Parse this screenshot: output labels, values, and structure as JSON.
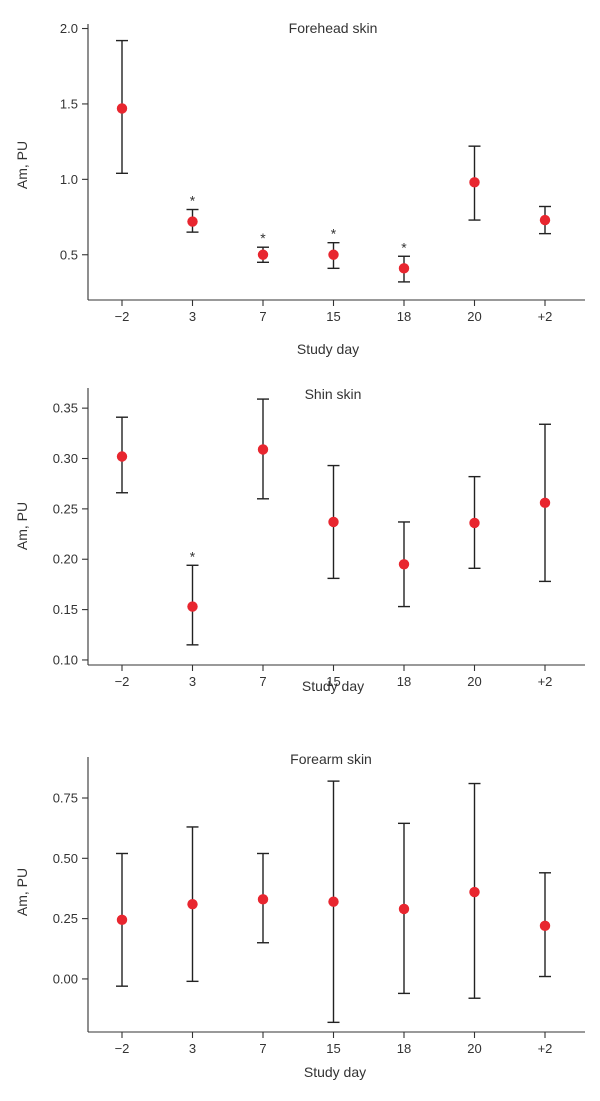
{
  "chart_data": [
    {
      "type": "scatter",
      "title": "Forehead skin",
      "xlabel": "Study day",
      "ylabel": "Am, PU",
      "categories": [
        "−2",
        "3",
        "7",
        "15",
        "18",
        "20",
        "+2"
      ],
      "ylim": [
        0.2,
        2.03
      ],
      "yticks": [
        0.5,
        1.0,
        1.5,
        2.0
      ],
      "ytick_labels": [
        "0.5",
        "1.0",
        "1.5",
        "2.0"
      ],
      "series": [
        {
          "values": [
            1.47,
            0.72,
            0.5,
            0.5,
            0.41,
            0.98,
            0.73
          ],
          "error_low": [
            1.04,
            0.65,
            0.45,
            0.41,
            0.32,
            0.73,
            0.64
          ],
          "error_high": [
            1.92,
            0.8,
            0.55,
            0.58,
            0.49,
            1.22,
            0.82
          ],
          "significant": [
            false,
            true,
            true,
            true,
            true,
            false,
            false
          ]
        }
      ],
      "significance_marker": "*",
      "marker_color": "#e8262f",
      "grid": false
    },
    {
      "type": "scatter",
      "title": "Shin skin",
      "xlabel": "Study day",
      "ylabel": "Am, PU",
      "categories": [
        "−2",
        "3",
        "7",
        "15",
        "18",
        "20",
        "+2"
      ],
      "ylim": [
        0.095,
        0.37
      ],
      "yticks": [
        0.1,
        0.15,
        0.2,
        0.25,
        0.3,
        0.35
      ],
      "ytick_labels": [
        "0.10",
        "0.15",
        "0.20",
        "0.25",
        "0.30",
        "0.35"
      ],
      "series": [
        {
          "values": [
            0.302,
            0.153,
            0.309,
            0.237,
            0.195,
            0.236,
            0.256
          ],
          "error_low": [
            0.266,
            0.115,
            0.26,
            0.181,
            0.153,
            0.191,
            0.178
          ],
          "error_high": [
            0.341,
            0.194,
            0.359,
            0.293,
            0.237,
            0.282,
            0.334
          ],
          "significant": [
            false,
            true,
            false,
            false,
            false,
            false,
            false
          ]
        }
      ],
      "significance_marker": "*",
      "marker_color": "#e8262f",
      "grid": false
    },
    {
      "type": "scatter",
      "title": "Forearm skin",
      "xlabel": "Study day",
      "ylabel": "Am, PU",
      "categories": [
        "−2",
        "3",
        "7",
        "15",
        "18",
        "20",
        "+2"
      ],
      "ylim": [
        -0.22,
        0.92
      ],
      "yticks": [
        0.0,
        0.25,
        0.5,
        0.75
      ],
      "ytick_labels": [
        "0.00",
        "0.25",
        "0.50",
        "0.75"
      ],
      "series": [
        {
          "values": [
            0.245,
            0.31,
            0.33,
            0.32,
            0.29,
            0.36,
            0.22
          ],
          "error_low": [
            -0.03,
            -0.01,
            0.15,
            -0.18,
            -0.06,
            -0.08,
            0.01
          ],
          "error_high": [
            0.52,
            0.63,
            0.52,
            0.82,
            0.645,
            0.81,
            0.44
          ],
          "significant": [
            false,
            false,
            false,
            false,
            false,
            false,
            false
          ]
        }
      ],
      "significance_marker": "*",
      "marker_color": "#e8262f",
      "grid": false
    }
  ]
}
